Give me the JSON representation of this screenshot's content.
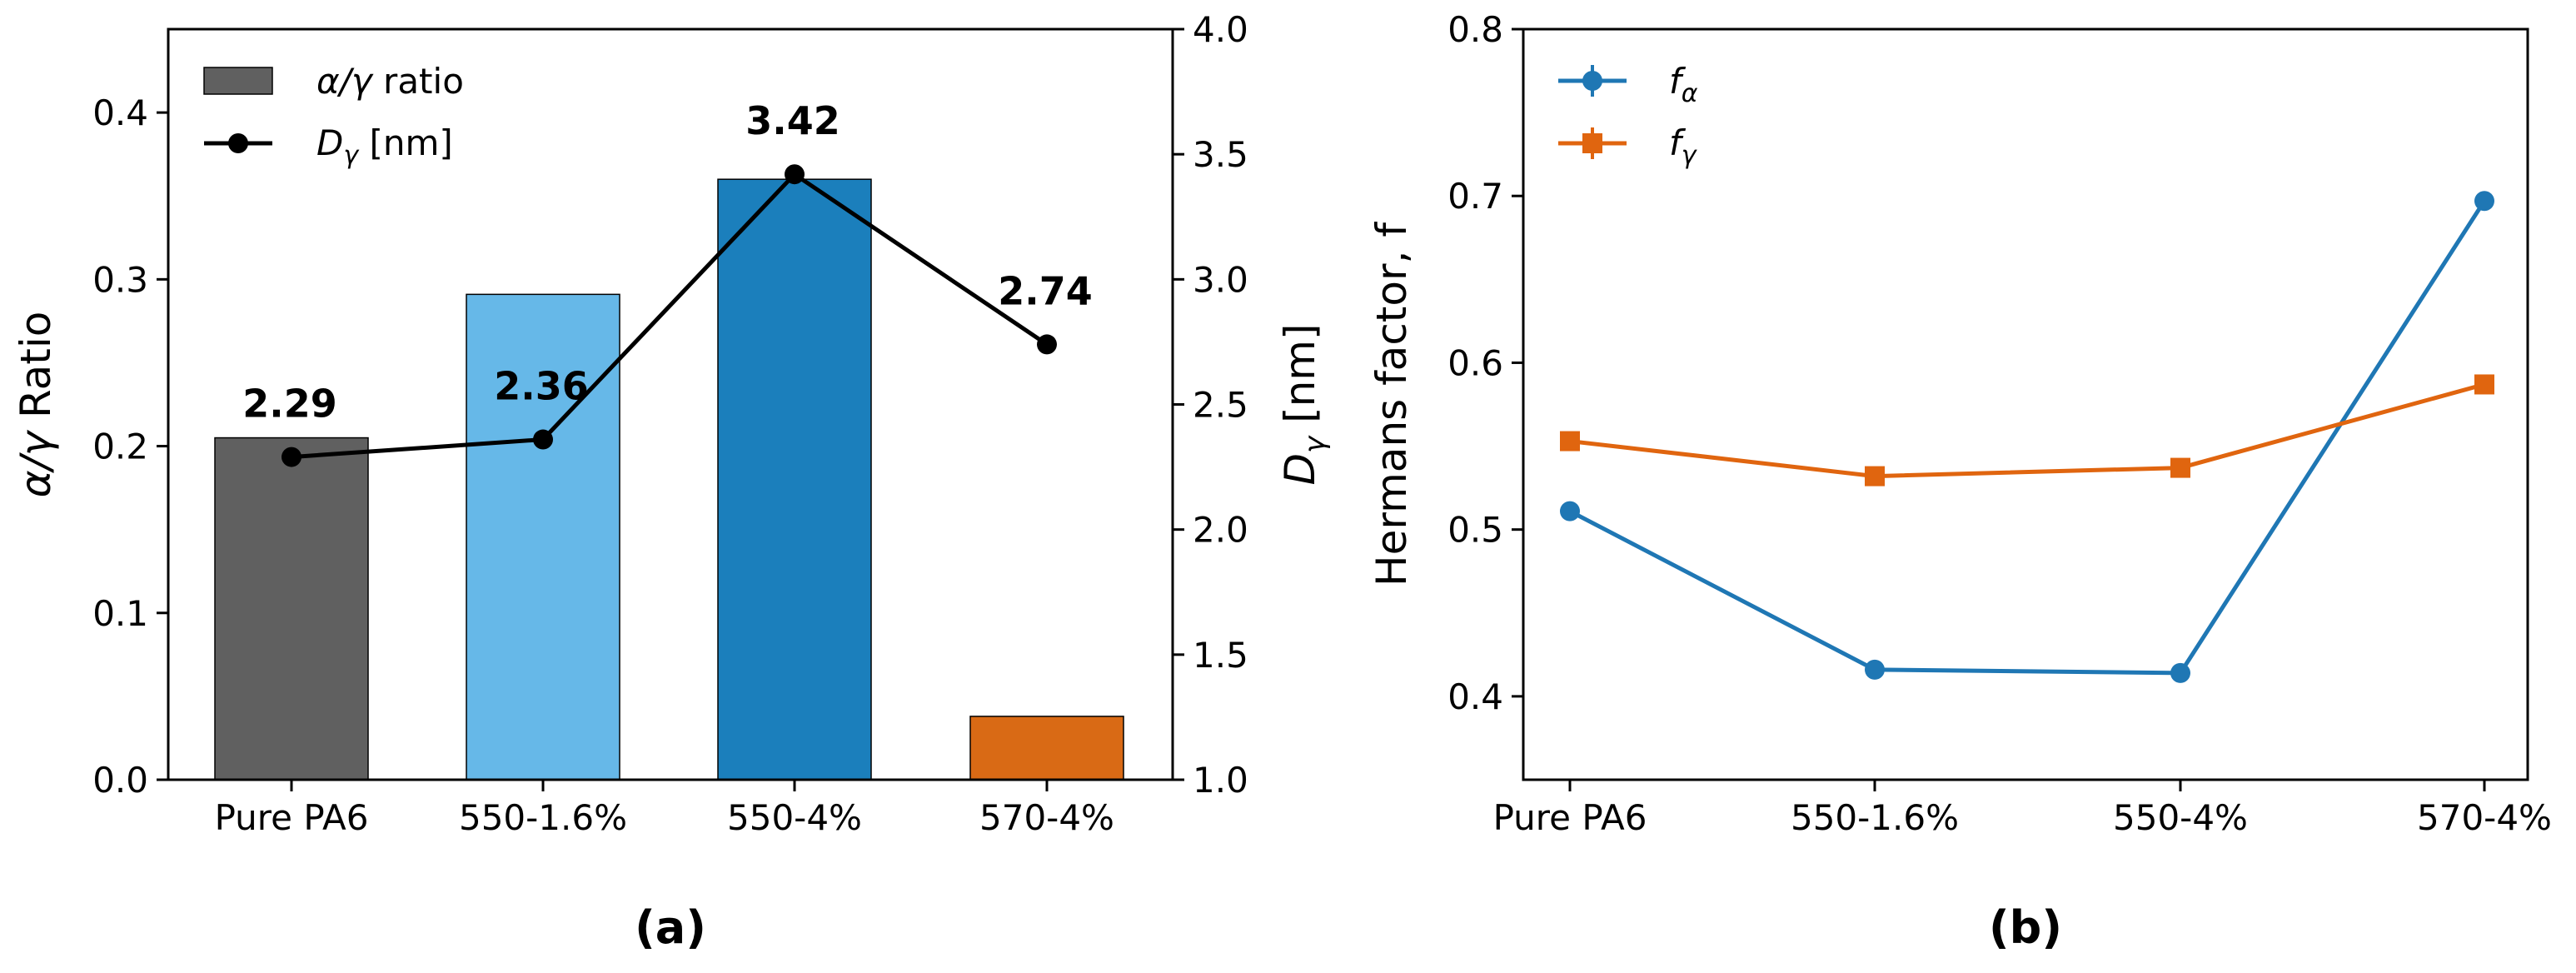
{
  "chart_data": [
    {
      "type": "bar",
      "panel_label": "(a)",
      "categories": [
        "Pure PA6",
        "550-1.6%",
        "550-4%",
        "570-4%"
      ],
      "bar_colors": [
        "#606060",
        "#66b8e8",
        "#1b7fbc",
        "#d96a15"
      ],
      "series": [
        {
          "name": "α/γ ratio",
          "axis": "left",
          "type": "bar",
          "values": [
            0.205,
            0.291,
            0.36,
            0.038
          ]
        },
        {
          "name": "Dγ [nm]",
          "axis": "right",
          "type": "line",
          "values": [
            2.29,
            2.36,
            3.42,
            2.74
          ],
          "labels": [
            "2.29",
            "2.36",
            "3.42",
            "2.74"
          ]
        }
      ],
      "ylabel": "α/γ Ratio",
      "ylim": [
        0,
        0.45
      ],
      "yticks": [
        "0.0",
        "0.1",
        "0.2",
        "0.3",
        "0.4"
      ],
      "y2label": "Dγ [nm]",
      "y2lim": [
        1.0,
        4.0
      ],
      "y2ticks": [
        "1.0",
        "1.5",
        "2.0",
        "2.5",
        "3.0",
        "3.5",
        "4.0"
      ],
      "legend_items": [
        {
          "text": "α/γ ratio",
          "italic": "α/γ",
          "rest": " ratio"
        },
        {
          "text": "Dγ [nm]",
          "italic": "D",
          "sub": "γ",
          "rest": " [nm]"
        }
      ],
      "legend": "top-left"
    },
    {
      "type": "line",
      "panel_label": "(b)",
      "categories": [
        "Pure PA6",
        "550-1.6%",
        "550-4%",
        "570-4%"
      ],
      "series": [
        {
          "name": "fα",
          "color": "#1f77b4",
          "marker": "circle",
          "values": [
            0.511,
            0.416,
            0.414,
            0.697
          ]
        },
        {
          "name": "fγ",
          "color": "#e0650f",
          "marker": "square",
          "values": [
            0.553,
            0.532,
            0.537,
            0.587
          ]
        }
      ],
      "ylabel": "Hermans factor, f",
      "ylim": [
        0.35,
        0.8
      ],
      "yticks": [
        "0.4",
        "0.5",
        "0.6",
        "0.7",
        "0.8"
      ],
      "legend_items": [
        {
          "text": "fα",
          "main": "f",
          "sub": "α"
        },
        {
          "text": "fγ",
          "main": "f",
          "sub": "γ"
        }
      ],
      "legend": "top-left"
    }
  ]
}
